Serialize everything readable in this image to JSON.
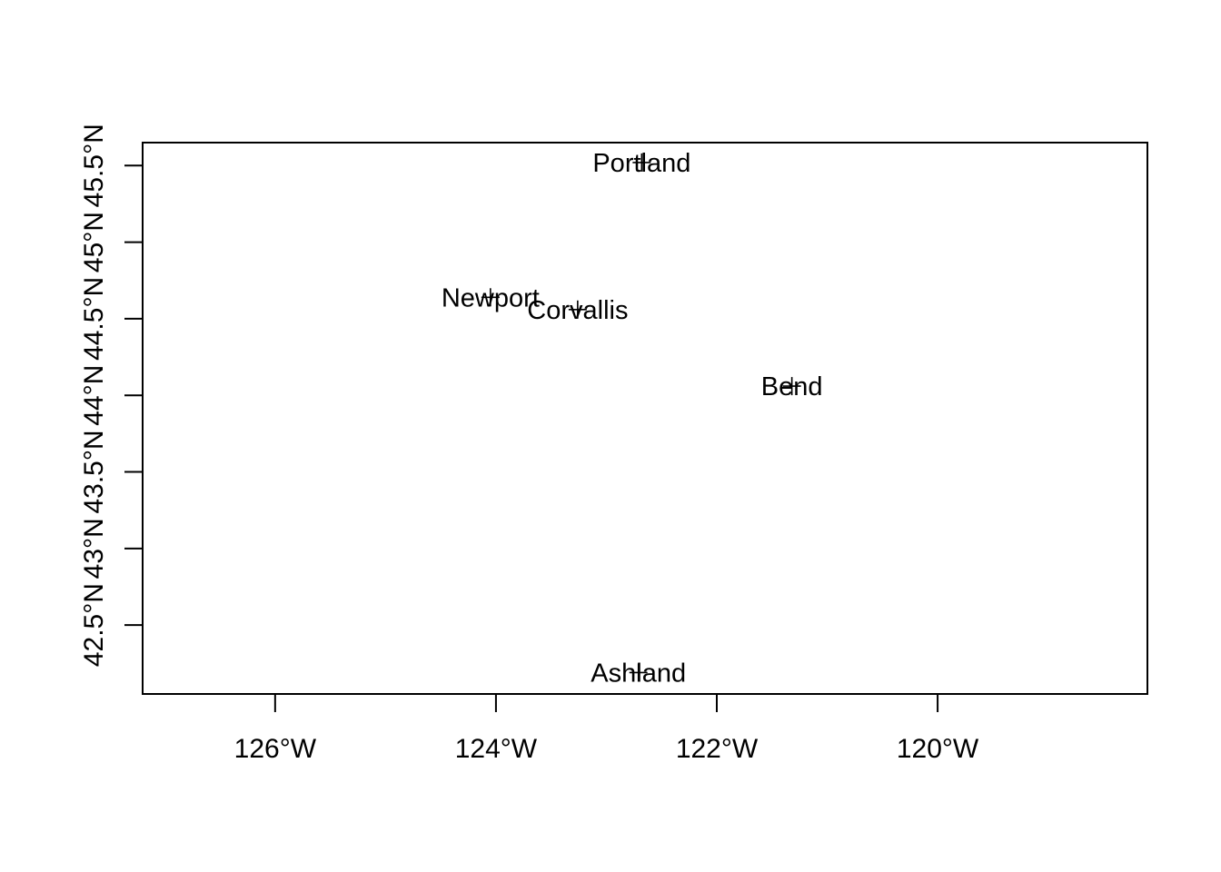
{
  "chart_data": {
    "type": "scatter",
    "title": "",
    "xlabel": "",
    "ylabel": "",
    "xlim": [
      -127.2,
      -118.1
    ],
    "ylim": [
      42.05,
      45.65
    ],
    "x_ticks": [
      {
        "value": -126,
        "label": "126°W"
      },
      {
        "value": -124,
        "label": "124°W"
      },
      {
        "value": -122,
        "label": "122°W"
      },
      {
        "value": -120,
        "label": "120°W"
      }
    ],
    "y_ticks": [
      {
        "value": 42.5,
        "label": "42.5°N"
      },
      {
        "value": 43.0,
        "label": "43°N"
      },
      {
        "value": 43.5,
        "label": "43.5°N"
      },
      {
        "value": 44.0,
        "label": "44°N"
      },
      {
        "value": 44.5,
        "label": "44.5°N"
      },
      {
        "value": 45.0,
        "label": "45°N"
      },
      {
        "value": 45.5,
        "label": "45.5°N"
      }
    ],
    "points": [
      {
        "name": "Portland",
        "x": -122.68,
        "y": 45.52
      },
      {
        "name": "Newport",
        "x": -124.05,
        "y": 44.64
      },
      {
        "name": "Corvallis",
        "x": -123.26,
        "y": 44.56
      },
      {
        "name": "Bend",
        "x": -121.32,
        "y": 44.06
      },
      {
        "name": "Ashland",
        "x": -122.71,
        "y": 42.19
      }
    ],
    "marker": "plus",
    "grid": false,
    "legend": "none"
  }
}
